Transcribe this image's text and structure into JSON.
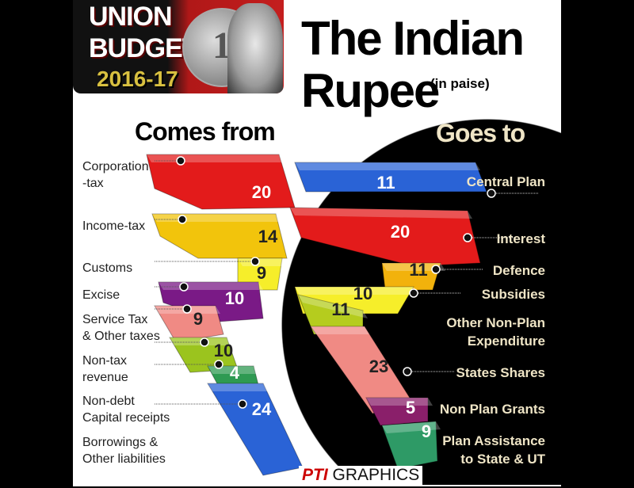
{
  "badge": {
    "line1": "UNION",
    "line2": "BUDGET",
    "year": "2016-17"
  },
  "title": {
    "line1": "The Indian",
    "line2": "Rupee",
    "unit": "(in paise)"
  },
  "footer": {
    "brand": "PTI",
    "label": "GRAPHICS"
  },
  "chart_data": {
    "type": "infographic-segments",
    "unit": "paise",
    "groups": [
      {
        "name": "Comes from",
        "items": [
          {
            "label": "Corporation -tax",
            "lines": [
              "Corporation",
              "-tax"
            ],
            "value": 20,
            "color": "#e31b1b"
          },
          {
            "label": "Income-tax",
            "lines": [
              "Income-tax"
            ],
            "value": 14,
            "color": "#f2c40c"
          },
          {
            "label": "Customs",
            "lines": [
              "Customs"
            ],
            "value": 9,
            "color": "#f6ee2a"
          },
          {
            "label": "Excise",
            "lines": [
              "Excise"
            ],
            "value": 10,
            "color": "#7a1a86"
          },
          {
            "label": "Service Tax & Other taxes",
            "lines": [
              "Service Tax",
              "& Other taxes"
            ],
            "value": 9,
            "color": "#f08a84"
          },
          {
            "label": "Non-tax revenue",
            "lines": [
              "Non-tax",
              "revenue"
            ],
            "value": 10,
            "color": "#9bc41e"
          },
          {
            "label": "Non-debt Capital receipts",
            "lines": [
              "Non-debt",
              "Capital receipts"
            ],
            "value": 4,
            "color": "#2e9a52"
          },
          {
            "label": "Borrowings & Other liabilities",
            "lines": [
              "Borrowings &",
              "Other liabilities"
            ],
            "value": 24,
            "color": "#2a63d6"
          }
        ]
      },
      {
        "name": "Goes to",
        "items": [
          {
            "label": "Central Plan",
            "lines": [
              "Central Plan"
            ],
            "value": 11,
            "color": "#2a63d6"
          },
          {
            "label": "Interest",
            "lines": [
              "Interest"
            ],
            "value": 20,
            "color": "#e31b1b"
          },
          {
            "label": "Defence",
            "lines": [
              "Defence"
            ],
            "value": 11,
            "color": "#f2b20c"
          },
          {
            "label": "Subsidies",
            "lines": [
              "Subsidies"
            ],
            "value": 10,
            "color": "#f6ee2a"
          },
          {
            "label": "Other Non-Plan Expenditure",
            "lines": [
              "Other Non-Plan",
              "Expenditure"
            ],
            "value": 11,
            "color": "#b5cc1e"
          },
          {
            "label": "States Shares",
            "lines": [
              "States Shares"
            ],
            "value": 23,
            "color": "#f08a84"
          },
          {
            "label": "Non Plan Grants",
            "lines": [
              "Non Plan Grants"
            ],
            "value": 5,
            "color": "#8a1f6a"
          },
          {
            "label": "Plan Assistance to State & UT",
            "lines": [
              "Plan Assistance",
              "to State & UT"
            ],
            "value": 9,
            "color": "#2e9a66"
          }
        ]
      }
    ]
  }
}
